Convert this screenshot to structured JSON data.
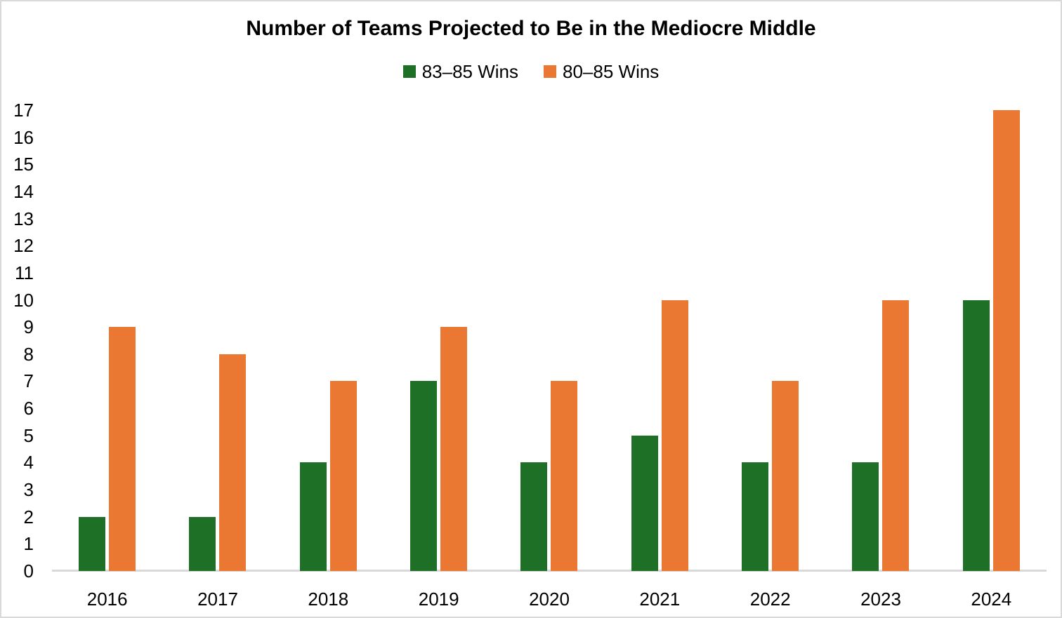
{
  "chart_data": {
    "type": "bar",
    "title": "Number of Teams Projected to Be in the Mediocre Middle",
    "categories": [
      "2016",
      "2017",
      "2018",
      "2019",
      "2020",
      "2021",
      "2022",
      "2023",
      "2024"
    ],
    "series": [
      {
        "name": "83–85 Wins",
        "color": "#1E7026",
        "values": [
          2,
          2,
          4,
          7,
          4,
          5,
          4,
          4,
          10
        ]
      },
      {
        "name": "80–85 Wins",
        "color": "#EA7732",
        "values": [
          9,
          8,
          7,
          9,
          7,
          10,
          7,
          10,
          17
        ]
      }
    ],
    "xlabel": "",
    "ylabel": "",
    "ylim": [
      0,
      17
    ],
    "ytick_step": 1,
    "yticks": [
      0,
      1,
      2,
      3,
      4,
      5,
      6,
      7,
      8,
      9,
      10,
      11,
      12,
      13,
      14,
      15,
      16,
      17
    ],
    "grid": false,
    "legend_position": "top",
    "axis_color": "#D9D9D9",
    "text_color": "#000000",
    "background_color": "#FFFFFF"
  }
}
